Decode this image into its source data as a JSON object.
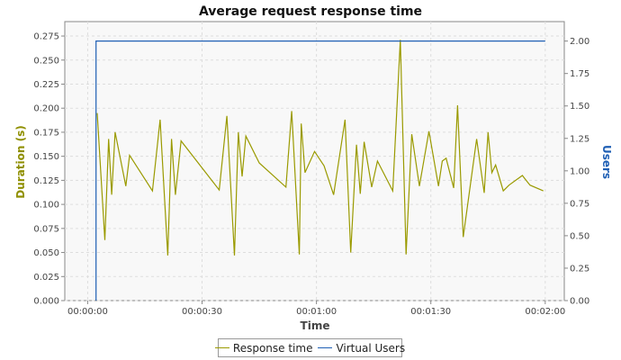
{
  "chart_data": {
    "type": "line",
    "title": "Average request response time",
    "xlabel": "Time",
    "ylabel": "Duration (s)",
    "y2label": "Users",
    "grid": true,
    "legend_position": "bottom",
    "x_ticks": [
      "00:00:00",
      "00:00:30",
      "00:01:00",
      "00:01:30",
      "00:02:00"
    ],
    "x_tick_seconds": [
      0,
      30,
      60,
      90,
      120
    ],
    "xlim_seconds": [
      -6,
      125
    ],
    "ylim": [
      0,
      0.29
    ],
    "y_ticks": [
      0.0,
      0.025,
      0.05,
      0.075,
      0.1,
      0.125,
      0.15,
      0.175,
      0.2,
      0.225,
      0.25,
      0.275
    ],
    "y_tick_labels": [
      "0.000",
      "0.025",
      "0.050",
      "0.075",
      "0.100",
      "0.125",
      "0.150",
      "0.175",
      "0.200",
      "0.225",
      "0.250",
      "0.275"
    ],
    "y2lim": [
      0,
      2.15
    ],
    "y2_ticks": [
      0,
      0.25,
      0.5,
      0.75,
      1.0,
      1.25,
      1.5,
      1.75,
      2.0
    ],
    "y2_tick_labels": [
      "0.00",
      "0.25",
      "0.50",
      "0.75",
      "1.00",
      "1.25",
      "1.50",
      "1.75",
      "2.00"
    ],
    "series": [
      {
        "name": "Response time",
        "axis": "left",
        "color": "#9a9a00",
        "x": [
          2.5,
          4.5,
          5.5,
          6.3,
          7.2,
          10.0,
          11.0,
          17.0,
          19.0,
          21.0,
          22.0,
          23.0,
          24.5,
          34.5,
          36.5,
          38.5,
          39.5,
          40.5,
          41.5,
          45.0,
          52.0,
          53.5,
          55.5,
          56.0,
          57.0,
          59.5,
          62.0,
          64.5,
          67.5,
          69.0,
          70.5,
          71.5,
          72.5,
          74.5,
          76.0,
          80.0,
          82.0,
          83.5,
          85.0,
          87.0,
          89.5,
          92.0,
          93.0,
          94.0,
          96.0,
          97.0,
          98.5,
          102.0,
          104.0,
          105.0,
          106.0,
          107.0,
          109.0,
          110.5,
          114.0,
          115.0,
          116.0,
          119.5
        ],
        "y": [
          0.195,
          0.063,
          0.168,
          0.11,
          0.175,
          0.119,
          0.151,
          0.114,
          0.188,
          0.047,
          0.168,
          0.11,
          0.166,
          0.115,
          0.192,
          0.047,
          0.175,
          0.129,
          0.171,
          0.143,
          0.118,
          0.197,
          0.048,
          0.184,
          0.133,
          0.155,
          0.14,
          0.11,
          0.188,
          0.05,
          0.162,
          0.111,
          0.165,
          0.118,
          0.145,
          0.114,
          0.271,
          0.048,
          0.173,
          0.119,
          0.176,
          0.119,
          0.145,
          0.148,
          0.117,
          0.203,
          0.066,
          0.168,
          0.112,
          0.175,
          0.133,
          0.141,
          0.114,
          0.12,
          0.13,
          0.125,
          0.12,
          0.114
        ]
      },
      {
        "name": "Virtual Users",
        "axis": "right",
        "color": "#1f5fb4",
        "x": [
          2.2,
          2.2,
          120.0
        ],
        "y": [
          0,
          2.0,
          2.0
        ]
      }
    ]
  },
  "legend": {
    "items": [
      {
        "label": "Response time",
        "color": "#9a9a00"
      },
      {
        "label": "Virtual Users",
        "color": "#1f5fb4"
      }
    ]
  }
}
